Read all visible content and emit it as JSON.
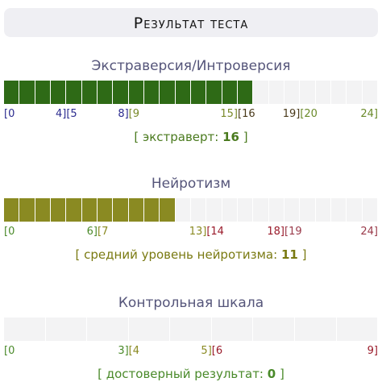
{
  "header": {
    "title": "Результат теста"
  },
  "sections": [
    {
      "title": "Экстраверсия/Интроверсия",
      "fill_color": "#2e6a16",
      "score": 16,
      "ticks": [
        {
          "value": 0,
          "start": "[0"
        },
        {
          "value": 4,
          "end": "4]",
          "start": "[5"
        },
        {
          "value": 8,
          "end": "8]",
          "start": "[9"
        },
        {
          "value": 15,
          "end": "15]",
          "start": "[16"
        },
        {
          "value": 19,
          "end": "19]",
          "start": "[20"
        },
        {
          "value": 24,
          "end": "24]"
        }
      ],
      "range_colors": [
        "#2b2b8f",
        "#2b2b8f",
        "#7a8a2a",
        "#4a3a1a",
        "#6a8a2a"
      ],
      "result": {
        "prefix": "[ экстраверт:",
        "suffix": "]",
        "color": "#4a7a1e"
      }
    },
    {
      "title": "Нейротизм",
      "fill_color": "#8a8a22",
      "score": 11,
      "ticks": [
        {
          "value": 0,
          "start": "[0"
        },
        {
          "value": 6,
          "end": "6]",
          "start": "[7"
        },
        {
          "value": 13,
          "end": "13]",
          "start": "[14"
        },
        {
          "value": 18,
          "end": "18]",
          "start": "[19"
        },
        {
          "value": 24,
          "end": "24]"
        }
      ],
      "range_colors": [
        "#4a8a2a",
        "#8a8a22",
        "#9a1a2a",
        "#9a3a4a"
      ],
      "result": {
        "prefix": "[ средний уровень нейротизма:",
        "suffix": "]",
        "color": "#7a7a12"
      }
    },
    {
      "title": "Контрольная шкала",
      "fill_color": "#4a8a2a",
      "score": 0,
      "ticks": [
        {
          "value": 0,
          "start": "[0"
        },
        {
          "value": 3,
          "end": "3]",
          "start": "[4"
        },
        {
          "value": 5,
          "end": "5]",
          "start": "[6"
        },
        {
          "value": 9,
          "end": "9]"
        }
      ],
      "range_colors": [
        "#4a8a2a",
        "#8a8a22",
        "#9a1a2a"
      ],
      "result": {
        "prefix": "[ достоверный результат:",
        "suffix": "]",
        "color": "#4a8a2a"
      }
    }
  ]
}
